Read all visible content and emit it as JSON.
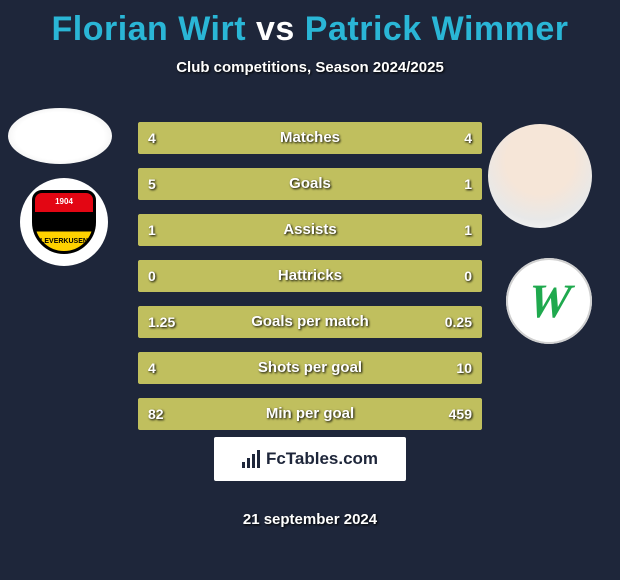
{
  "background_color": "#1e263a",
  "title": {
    "player1": "Florian Wirt",
    "vs": "vs",
    "player2": "Patrick Wimmer",
    "player1_color": "#2ab6d6",
    "player2_color": "#2ab6d6",
    "fontsize": 34
  },
  "subtitle": "Club competitions, Season 2024/2025",
  "subtitle_fontsize": 15,
  "stats": {
    "track_color": "#9e9a33",
    "fill_color": "#c0bf5e",
    "text_color": "#ffffff",
    "label_fontsize": 15,
    "value_fontsize": 14,
    "rows": [
      {
        "label": "Matches",
        "left_val": "4",
        "right_val": "4",
        "left_pct": 50,
        "right_pct": 50
      },
      {
        "label": "Goals",
        "left_val": "5",
        "right_val": "1",
        "left_pct": 78,
        "right_pct": 22
      },
      {
        "label": "Assists",
        "left_val": "1",
        "right_val": "1",
        "left_pct": 50,
        "right_pct": 50
      },
      {
        "label": "Hattricks",
        "left_val": "0",
        "right_val": "0",
        "left_pct": 50,
        "right_pct": 50
      },
      {
        "label": "Goals per match",
        "left_val": "1.25",
        "right_val": "0.25",
        "left_pct": 78,
        "right_pct": 22
      },
      {
        "label": "Shots per goal",
        "left_val": "4",
        "right_val": "10",
        "left_pct": 50,
        "right_pct": 50
      },
      {
        "label": "Min per goal",
        "left_val": "82",
        "right_val": "459",
        "left_pct": 50,
        "right_pct": 50
      }
    ]
  },
  "player1_crest": {
    "top_text": "1904",
    "bottom_text": "LEVERKUSEN"
  },
  "player2_crest": {
    "letter": "W",
    "letter_color": "#1fa94e"
  },
  "branding": {
    "text": "FcTables.com"
  },
  "date": "21 september 2024"
}
